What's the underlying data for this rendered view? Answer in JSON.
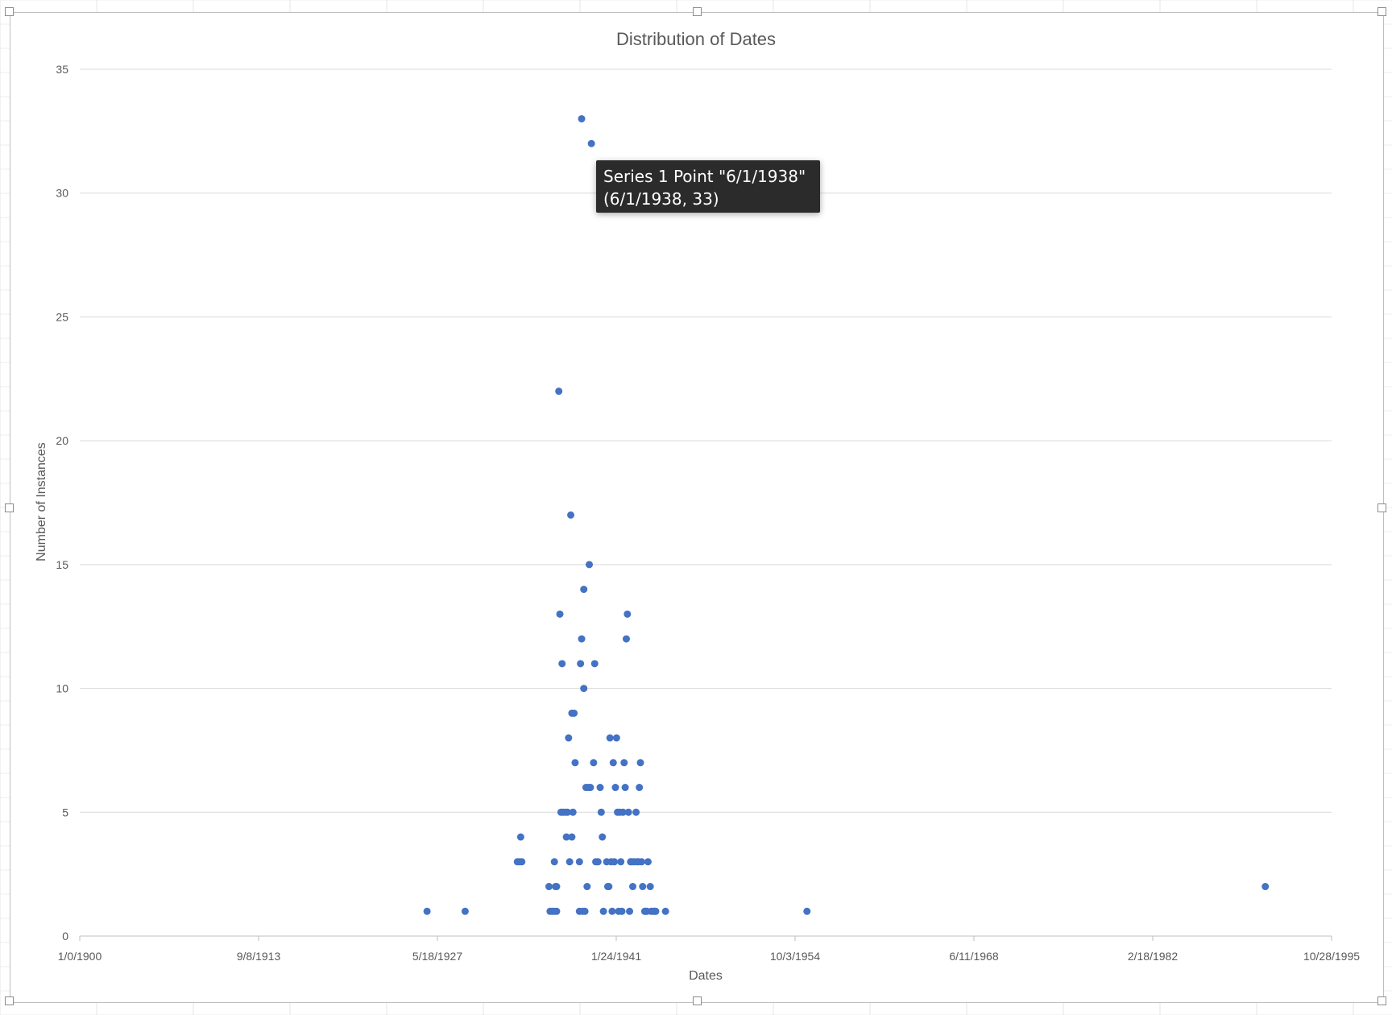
{
  "colors": {
    "marker": "#4472c4",
    "grid": "#d9d9d9",
    "axis_text": "#595959",
    "tooltip_bg": "#2b2b2b"
  },
  "tooltip": {
    "line1": "Series 1 Point \"6/1/1938\"",
    "line2": "(6/1/1938, 33)"
  },
  "chart_data": {
    "type": "scatter",
    "title": "Distribution of Dates",
    "xlabel": "Dates",
    "ylabel": "Number of Instances",
    "xlim": [
      "1/0/1900",
      "10/28/1995"
    ],
    "ylim": [
      0,
      35
    ],
    "x_ticks": [
      "1/0/1900",
      "9/8/1913",
      "5/18/1927",
      "1/24/1941",
      "10/3/1954",
      "6/11/1968",
      "2/18/1982",
      "10/28/1995"
    ],
    "y_ticks": [
      0,
      5,
      10,
      15,
      20,
      25,
      30,
      35
    ],
    "grid": "horizontal",
    "legend": "none",
    "series": [
      {
        "points": [
          {
            "x": "8/1/1926",
            "y": 1
          },
          {
            "x": "7/1/1929",
            "y": 1
          },
          {
            "x": "7/1/1933",
            "y": 3
          },
          {
            "x": "9/1/1933",
            "y": 3
          },
          {
            "x": "11/1/1933",
            "y": 3
          },
          {
            "x": "10/1/1933",
            "y": 4
          },
          {
            "x": "12/1/1935",
            "y": 2
          },
          {
            "x": "1/1/1936",
            "y": 1
          },
          {
            "x": "3/1/1936",
            "y": 1
          },
          {
            "x": "5/1/1936",
            "y": 1
          },
          {
            "x": "5/1/1936",
            "y": 3
          },
          {
            "x": "6/1/1936",
            "y": 2
          },
          {
            "x": "7/1/1936",
            "y": 2
          },
          {
            "x": "7/1/1936",
            "y": 1
          },
          {
            "x": "9/1/1936",
            "y": 22
          },
          {
            "x": "10/1/1936",
            "y": 13
          },
          {
            "x": "11/1/1936",
            "y": 5
          },
          {
            "x": "12/1/1936",
            "y": 11
          },
          {
            "x": "1/1/1937",
            "y": 5
          },
          {
            "x": "3/1/1937",
            "y": 5
          },
          {
            "x": "4/1/1937",
            "y": 4
          },
          {
            "x": "5/1/1937",
            "y": 5
          },
          {
            "x": "6/1/1937",
            "y": 8
          },
          {
            "x": "7/1/1937",
            "y": 3
          },
          {
            "x": "8/1/1937",
            "y": 17
          },
          {
            "x": "9/1/1937",
            "y": 9
          },
          {
            "x": "9/1/1937",
            "y": 4
          },
          {
            "x": "10/1/1937",
            "y": 5
          },
          {
            "x": "11/1/1937",
            "y": 9
          },
          {
            "x": "12/1/1937",
            "y": 7
          },
          {
            "x": "4/1/1938",
            "y": 3
          },
          {
            "x": "4/1/1938",
            "y": 1
          },
          {
            "x": "5/1/1938",
            "y": 11
          },
          {
            "x": "6/1/1938",
            "y": 33
          },
          {
            "x": "6/1/1938",
            "y": 12
          },
          {
            "x": "7/1/1938",
            "y": 1
          },
          {
            "x": "8/1/1938",
            "y": 10
          },
          {
            "x": "8/1/1938",
            "y": 14
          },
          {
            "x": "9/1/1938",
            "y": 1
          },
          {
            "x": "10/1/1938",
            "y": 6
          },
          {
            "x": "11/1/1938",
            "y": 2
          },
          {
            "x": "12/1/1938",
            "y": 6
          },
          {
            "x": "1/1/1939",
            "y": 15
          },
          {
            "x": "2/1/1939",
            "y": 6
          },
          {
            "x": "3/1/1939",
            "y": 32
          },
          {
            "x": "5/1/1939",
            "y": 7
          },
          {
            "x": "6/1/1939",
            "y": 11
          },
          {
            "x": "7/1/1939",
            "y": 3
          },
          {
            "x": "9/1/1939",
            "y": 3
          },
          {
            "x": "11/1/1939",
            "y": 6
          },
          {
            "x": "12/1/1939",
            "y": 5
          },
          {
            "x": "1/1/1940",
            "y": 4
          },
          {
            "x": "2/1/1940",
            "y": 1
          },
          {
            "x": "5/1/1940",
            "y": 3
          },
          {
            "x": "6/1/1940",
            "y": 2
          },
          {
            "x": "7/1/1940",
            "y": 2
          },
          {
            "x": "8/1/1940",
            "y": 8
          },
          {
            "x": "9/1/1940",
            "y": 3
          },
          {
            "x": "10/1/1940",
            "y": 1
          },
          {
            "x": "11/1/1940",
            "y": 7
          },
          {
            "x": "12/1/1940",
            "y": 3
          },
          {
            "x": "1/1/1941",
            "y": 6
          },
          {
            "x": "2/1/1941",
            "y": 8
          },
          {
            "x": "3/1/1941",
            "y": 5
          },
          {
            "x": "4/1/1941",
            "y": 1
          },
          {
            "x": "5/1/1941",
            "y": 5
          },
          {
            "x": "6/1/1941",
            "y": 3
          },
          {
            "x": "7/1/1941",
            "y": 1
          },
          {
            "x": "8/1/1941",
            "y": 5
          },
          {
            "x": "9/1/1941",
            "y": 7
          },
          {
            "x": "10/1/1941",
            "y": 6
          },
          {
            "x": "11/1/1941",
            "y": 12
          },
          {
            "x": "12/1/1941",
            "y": 13
          },
          {
            "x": "1/1/1942",
            "y": 5
          },
          {
            "x": "2/1/1942",
            "y": 1
          },
          {
            "x": "3/1/1942",
            "y": 3
          },
          {
            "x": "4/1/1942",
            "y": 3
          },
          {
            "x": "5/1/1942",
            "y": 2
          },
          {
            "x": "6/1/1942",
            "y": 3
          },
          {
            "x": "8/1/1942",
            "y": 5
          },
          {
            "x": "9/1/1942",
            "y": 3
          },
          {
            "x": "10/1/1942",
            "y": 3
          },
          {
            "x": "11/1/1942",
            "y": 6
          },
          {
            "x": "12/1/1942",
            "y": 7
          },
          {
            "x": "1/1/1943",
            "y": 3
          },
          {
            "x": "2/1/1943",
            "y": 2
          },
          {
            "x": "4/1/1943",
            "y": 1
          },
          {
            "x": "5/1/1943",
            "y": 1
          },
          {
            "x": "6/1/1943",
            "y": 1
          },
          {
            "x": "7/1/1943",
            "y": 3
          },
          {
            "x": "9/1/1943",
            "y": 2
          },
          {
            "x": "10/1/1943",
            "y": 1
          },
          {
            "x": "12/1/1943",
            "y": 1
          },
          {
            "x": "1/1/1944",
            "y": 1
          },
          {
            "x": "2/1/1944",
            "y": 1
          },
          {
            "x": "11/1/1944",
            "y": 1
          },
          {
            "x": "9/1/1955",
            "y": 1
          },
          {
            "x": "10/1/1990",
            "y": 2
          }
        ]
      }
    ]
  }
}
